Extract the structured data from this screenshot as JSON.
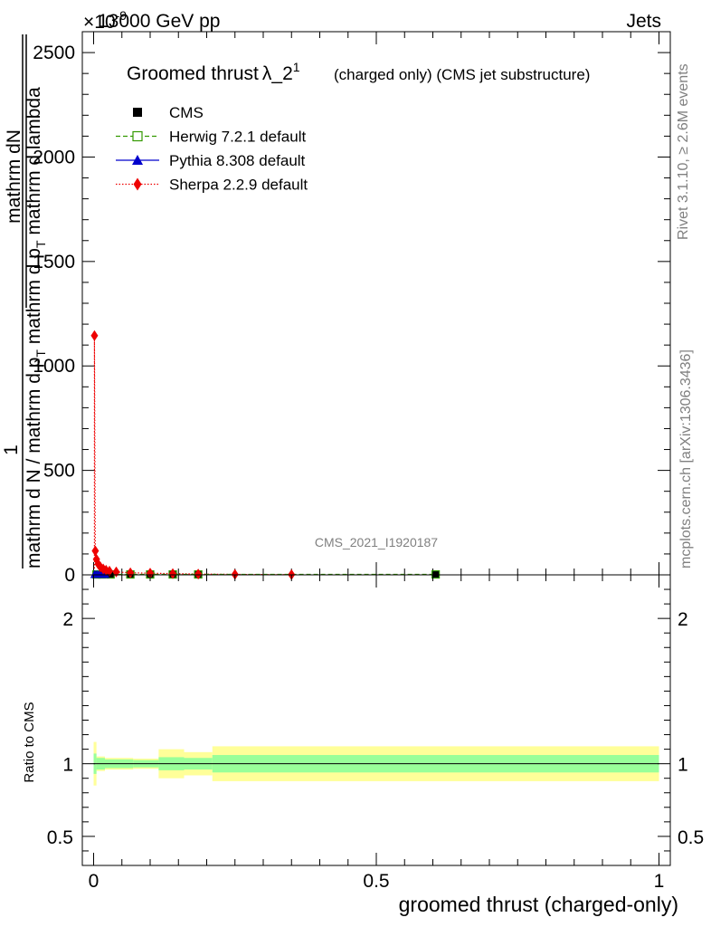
{
  "header": {
    "energy_label": "13000 GeV pp",
    "process_label": "Jets",
    "exponent_label": "×10",
    "exponent_power": "-9"
  },
  "side_labels": {
    "rivet": "Rivet 3.1.10, ≥ 2.6M events",
    "mcplots": "mcplots.cern.ch [arXiv:1306.3436]"
  },
  "analysis_id": "CMS_2021_I1920187",
  "chart_data": [
    {
      "type": "line",
      "title": "Groomed thrust",
      "title_symbol": "λ_2",
      "title_sup": "1",
      "subtitle": "(charged only) (CMS jet substructure)",
      "ylabel": {
        "one": "1",
        "num": "mathrm dN",
        "den_a": "mathrm d N / mathrm d p",
        "den_a_sub": "T",
        "den_b": " mathrm d p",
        "den_b_sub": "T",
        "den_c": " mathrm d lambda"
      },
      "xlim": [
        0,
        1
      ],
      "ylim": [
        0,
        2600
      ],
      "yticks": [
        {
          "v": 0,
          "label": "0"
        },
        {
          "v": 500,
          "label": "500"
        },
        {
          "v": 1000,
          "label": "1000"
        },
        {
          "v": 1500,
          "label": "1500"
        },
        {
          "v": 2000,
          "label": "2000"
        },
        {
          "v": 2500,
          "label": "2500"
        }
      ],
      "legend": [
        {
          "key": "cms",
          "label": "CMS",
          "color": "#000000",
          "marker": "square-filled",
          "line": "none"
        },
        {
          "key": "herwig",
          "label": "Herwig 7.2.1 default",
          "color": "#339900",
          "marker": "square-open",
          "line": "dashed"
        },
        {
          "key": "pythia",
          "label": "Pythia 8.308 default",
          "color": "#0000cc",
          "marker": "triangle",
          "line": "solid"
        },
        {
          "key": "sherpa",
          "label": "Sherpa 2.2.9 default",
          "color": "#ee0000",
          "marker": "diamond",
          "line": "dotted"
        }
      ],
      "series": {
        "cms": [
          {
            "x": 0.005,
            "y": 2
          },
          {
            "x": 0.015,
            "y": 2
          },
          {
            "x": 0.03,
            "y": 2
          },
          {
            "x": 0.065,
            "y": 2
          },
          {
            "x": 0.1,
            "y": 2
          },
          {
            "x": 0.14,
            "y": 2
          },
          {
            "x": 0.185,
            "y": 2
          },
          {
            "x": 0.605,
            "y": 2
          }
        ],
        "herwig": [
          {
            "x": 0.005,
            "y": 2
          },
          {
            "x": 0.015,
            "y": 2
          },
          {
            "x": 0.03,
            "y": 2
          },
          {
            "x": 0.065,
            "y": 2
          },
          {
            "x": 0.1,
            "y": 2
          },
          {
            "x": 0.14,
            "y": 2
          },
          {
            "x": 0.185,
            "y": 2
          },
          {
            "x": 0.605,
            "y": 2
          }
        ],
        "pythia": [
          {
            "x": 0.002,
            "y": 2
          },
          {
            "x": 0.006,
            "y": 2
          },
          {
            "x": 0.01,
            "y": 2
          },
          {
            "x": 0.015,
            "y": 2
          },
          {
            "x": 0.02,
            "y": 2
          }
        ],
        "sherpa": [
          {
            "x": 0.0015,
            "y": 1145
          },
          {
            "x": 0.003,
            "y": 115
          },
          {
            "x": 0.005,
            "y": 75
          },
          {
            "x": 0.008,
            "y": 52
          },
          {
            "x": 0.012,
            "y": 38
          },
          {
            "x": 0.017,
            "y": 28
          },
          {
            "x": 0.022,
            "y": 22
          },
          {
            "x": 0.028,
            "y": 18
          },
          {
            "x": 0.04,
            "y": 14
          },
          {
            "x": 0.065,
            "y": 10
          },
          {
            "x": 0.1,
            "y": 8
          },
          {
            "x": 0.14,
            "y": 6
          },
          {
            "x": 0.185,
            "y": 4
          },
          {
            "x": 0.25,
            "y": 2
          },
          {
            "x": 0.35,
            "y": 1
          }
        ]
      }
    },
    {
      "type": "area",
      "xlabel": "groomed thrust (charged-only)",
      "ylabel": "Ratio to CMS",
      "xlim": [
        -0.02,
        1.02
      ],
      "ylim": [
        0.3,
        2.3
      ],
      "xticks": [
        {
          "v": 0,
          "label": "0"
        },
        {
          "v": 0.5,
          "label": "0.5"
        },
        {
          "v": 1,
          "label": "1"
        }
      ],
      "yticks": [
        {
          "v": 0.5,
          "label": "0.5"
        },
        {
          "v": 1,
          "label": "1"
        },
        {
          "v": 2,
          "label": "2"
        }
      ],
      "bands": [
        {
          "x0": 0.0,
          "x1": 0.005,
          "stat": [
            0.93,
            1.07
          ],
          "total": [
            0.85,
            1.15
          ]
        },
        {
          "x0": 0.005,
          "x1": 0.02,
          "stat": [
            0.96,
            1.04
          ],
          "total": [
            0.95,
            1.05
          ]
        },
        {
          "x0": 0.02,
          "x1": 0.07,
          "stat": [
            0.97,
            1.03
          ],
          "total": [
            0.96,
            1.04
          ]
        },
        {
          "x0": 0.07,
          "x1": 0.115,
          "stat": [
            0.975,
            1.025
          ],
          "total": [
            0.965,
            1.035
          ]
        },
        {
          "x0": 0.115,
          "x1": 0.16,
          "stat": [
            0.955,
            1.045
          ],
          "total": [
            0.9,
            1.1
          ]
        },
        {
          "x0": 0.16,
          "x1": 0.21,
          "stat": [
            0.96,
            1.04
          ],
          "total": [
            0.92,
            1.08
          ]
        },
        {
          "x0": 0.21,
          "x1": 1.0,
          "stat": [
            0.94,
            1.06
          ],
          "total": [
            0.88,
            1.12
          ]
        }
      ],
      "stat_color": "#99ff99",
      "total_color": "#ffff99"
    }
  ]
}
